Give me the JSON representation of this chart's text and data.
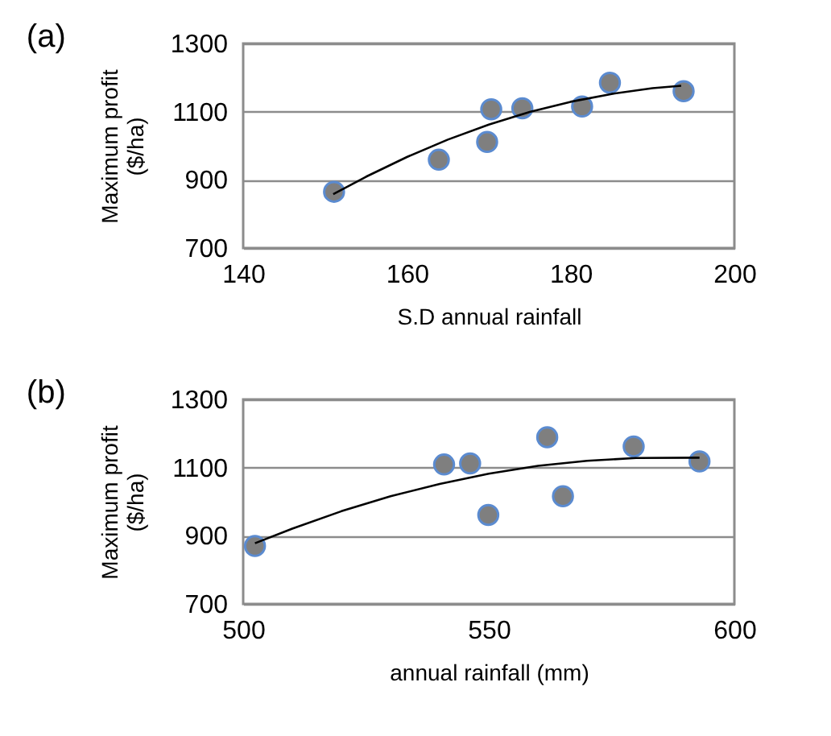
{
  "chart_data": [
    {
      "type": "scatter",
      "title": "(a)",
      "xlabel": "S.D annual rainfall",
      "ylabel": "Maximum profit\n($/ha)",
      "xlim": [
        140,
        200
      ],
      "xticks": [
        140,
        160,
        180,
        200
      ],
      "ylim": [
        700,
        1300
      ],
      "yticks": [
        700,
        900,
        1100,
        1300
      ],
      "grid": "y",
      "series": [
        {
          "marker": "circle",
          "color": "#7f7f7f",
          "x": [
            151.1,
            163.9,
            169.8,
            170.3,
            174.1,
            181.4,
            184.8,
            193.8
          ],
          "values": [
            865,
            959,
            1011,
            1107,
            1110,
            1115,
            1185,
            1160
          ]
        },
        {
          "type": "line",
          "marker": "none",
          "color": "#000000",
          "x": [
            151,
            155,
            160,
            165,
            170,
            175,
            180,
            185,
            190,
            193.5
          ],
          "values": [
            858,
            909,
            967,
            1018,
            1062,
            1099,
            1129,
            1152,
            1169,
            1176
          ]
        }
      ]
    },
    {
      "type": "scatter",
      "title": "(b)",
      "xlabel": "annual rainfall (mm)",
      "ylabel": "Maximum profit\n($/ha)",
      "xlim": [
        500,
        600
      ],
      "xticks": [
        500,
        550,
        600
      ],
      "ylim": [
        700,
        1300
      ],
      "yticks": [
        700,
        900,
        1100,
        1300
      ],
      "grid": "y",
      "series": [
        {
          "marker": "circle",
          "color": "#7f7f7f",
          "x": [
            502.4,
            540.9,
            546.2,
            549.9,
            561.9,
            565.1,
            579.5,
            592.9
          ],
          "values": [
            870,
            1109,
            1112,
            961,
            1189,
            1016,
            1162,
            1118
          ]
        },
        {
          "type": "line",
          "marker": "none",
          "color": "#000000",
          "x": [
            502.4,
            510,
            520,
            530,
            540,
            550,
            560,
            570,
            580,
            592.9
          ],
          "values": [
            878,
            921,
            972,
            1016,
            1052,
            1082,
            1105,
            1120,
            1128,
            1129
          ]
        }
      ]
    }
  ]
}
